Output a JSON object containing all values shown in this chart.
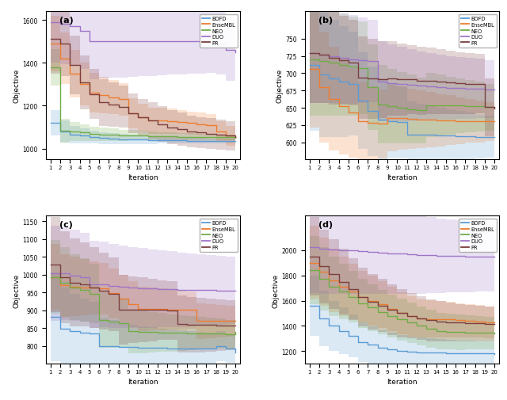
{
  "legend_labels": [
    "BOFD",
    "EnseMBL",
    "NEO",
    "DUO",
    "PR"
  ],
  "colors": {
    "BOFD": "#5b9bd5",
    "EnseMBL": "#ed7d31",
    "NEO": "#70ad47",
    "DUO": "#9e75c7",
    "PR": "#7b3f3f"
  },
  "subplot_labels": [
    "(a)",
    "(b)",
    "(c)",
    "(d)"
  ],
  "subplot_a": {
    "ylim": [
      950,
      1640
    ],
    "yticks": [
      1000,
      1200,
      1400,
      1600
    ],
    "ylabel": "Objective",
    "xlabel": "Iteration",
    "BOFD": {
      "mean": [
        1120,
        1080,
        1065,
        1060,
        1055,
        1050,
        1048,
        1045,
        1043,
        1042,
        1040,
        1040,
        1040,
        1038,
        1037,
        1037,
        1036,
        1036,
        1035,
        1035
      ],
      "std": [
        60,
        50,
        40,
        35,
        30,
        28,
        26,
        24,
        22,
        20,
        18,
        17,
        16,
        15,
        14,
        13,
        12,
        12,
        11,
        10
      ]
    },
    "EnseMBL": {
      "mean": [
        1490,
        1420,
        1350,
        1300,
        1260,
        1250,
        1240,
        1230,
        1165,
        1145,
        1130,
        1130,
        1128,
        1125,
        1120,
        1115,
        1110,
        1080,
        1060,
        1055
      ],
      "std": [
        130,
        120,
        110,
        100,
        92,
        85,
        80,
        75,
        70,
        65,
        62,
        60,
        58,
        56,
        54,
        52,
        50,
        48,
        46,
        44
      ]
    },
    "NEO": {
      "mean": [
        1380,
        1085,
        1080,
        1075,
        1070,
        1067,
        1065,
        1063,
        1062,
        1060,
        1059,
        1058,
        1057,
        1056,
        1055,
        1054,
        1054,
        1053,
        1053,
        1052
      ],
      "std": [
        85,
        55,
        45,
        38,
        33,
        30,
        28,
        26,
        24,
        22,
        20,
        19,
        18,
        17,
        16,
        15,
        14,
        13,
        12,
        11
      ]
    },
    "DUO": {
      "mean": [
        1590,
        1580,
        1570,
        1550,
        1500,
        1500,
        1500,
        1500,
        1500,
        1500,
        1500,
        1500,
        1500,
        1500,
        1500,
        1500,
        1500,
        1490,
        1460,
        1450
      ],
      "std": [
        190,
        188,
        185,
        180,
        175,
        172,
        170,
        168,
        165,
        162,
        160,
        158,
        156,
        154,
        152,
        150,
        148,
        146,
        144,
        142
      ]
    },
    "PR": {
      "mean": [
        1510,
        1490,
        1390,
        1310,
        1255,
        1215,
        1205,
        1195,
        1165,
        1145,
        1130,
        1115,
        1100,
        1090,
        1080,
        1075,
        1070,
        1065,
        1060,
        1055
      ],
      "std": [
        160,
        150,
        135,
        125,
        115,
        108,
        103,
        98,
        93,
        88,
        85,
        82,
        80,
        78,
        75,
        73,
        71,
        69,
        67,
        65
      ]
    }
  },
  "subplot_b": {
    "ylim": [
      575,
      790
    ],
    "yticks": [
      600,
      625,
      650,
      675,
      700,
      725,
      750
    ],
    "ylabel": "Objective",
    "xlabel": "Iteration",
    "BOFD": {
      "mean": [
        712,
        698,
        693,
        688,
        685,
        660,
        645,
        633,
        631,
        629,
        611,
        611,
        611,
        610,
        610,
        609,
        609,
        608,
        608,
        607
      ],
      "std": [
        95,
        90,
        85,
        80,
        75,
        70,
        65,
        60,
        55,
        52,
        48,
        45,
        42,
        40,
        38,
        36,
        34,
        32,
        30,
        28
      ]
    },
    "EnseMBL": {
      "mean": [
        706,
        680,
        663,
        652,
        643,
        630,
        628,
        627,
        635,
        635,
        634,
        633,
        633,
        632,
        632,
        631,
        631,
        630,
        630,
        630
      ],
      "std": [
        85,
        80,
        75,
        70,
        65,
        58,
        53,
        50,
        48,
        46,
        44,
        42,
        40,
        38,
        36,
        34,
        32,
        30,
        28,
        27
      ]
    },
    "NEO": {
      "mean": [
        720,
        718,
        715,
        712,
        710,
        708,
        680,
        655,
        652,
        650,
        648,
        646,
        654,
        654,
        653,
        653,
        652,
        652,
        651,
        651
      ],
      "std": [
        82,
        80,
        77,
        74,
        72,
        67,
        62,
        57,
        54,
        52,
        50,
        48,
        46,
        44,
        42,
        40,
        38,
        36,
        34,
        32
      ]
    },
    "DUO": {
      "mean": [
        729,
        727,
        725,
        722,
        720,
        719,
        718,
        688,
        686,
        684,
        683,
        682,
        681,
        680,
        679,
        679,
        678,
        678,
        677,
        677
      ],
      "std": [
        72,
        70,
        68,
        66,
        64,
        62,
        60,
        58,
        56,
        54,
        52,
        50,
        48,
        47,
        46,
        45,
        44,
        43,
        42,
        42
      ]
    },
    "PR": {
      "mean": [
        729,
        727,
        722,
        719,
        716,
        694,
        692,
        691,
        692,
        691,
        691,
        689,
        689,
        688,
        687,
        686,
        685,
        685,
        651,
        649
      ],
      "std": [
        72,
        70,
        67,
        64,
        62,
        60,
        58,
        56,
        54,
        52,
        50,
        49,
        48,
        47,
        46,
        45,
        44,
        43,
        42,
        41
      ]
    }
  },
  "subplot_c": {
    "ylim": [
      750,
      1165
    ],
    "yticks": [
      800,
      850,
      900,
      950,
      1000,
      1050,
      1100,
      1150
    ],
    "ylabel": "Objective",
    "xlabel": "Iteration",
    "BOFD": {
      "mean": [
        882,
        848,
        842,
        838,
        835,
        800,
        799,
        798,
        797,
        796,
        795,
        795,
        794,
        794,
        794,
        793,
        793,
        800,
        793,
        782
      ],
      "std": [
        125,
        115,
        105,
        95,
        88,
        78,
        73,
        68,
        63,
        60,
        57,
        54,
        52,
        50,
        48,
        46,
        44,
        42,
        40,
        38
      ]
    },
    "EnseMBL": {
      "mean": [
        993,
        970,
        967,
        965,
        963,
        961,
        948,
        933,
        918,
        904,
        904,
        903,
        902,
        901,
        901,
        870,
        870,
        870,
        870,
        870
      ],
      "std": [
        92,
        88,
        83,
        78,
        74,
        72,
        70,
        67,
        64,
        62,
        60,
        58,
        56,
        54,
        52,
        50,
        48,
        46,
        44,
        42
      ]
    },
    "NEO": {
      "mean": [
        993,
        978,
        965,
        957,
        947,
        874,
        869,
        865,
        842,
        840,
        839,
        838,
        837,
        837,
        836,
        836,
        835,
        835,
        834,
        840
      ],
      "std": [
        103,
        98,
        93,
        88,
        83,
        78,
        73,
        68,
        63,
        60,
        57,
        54,
        52,
        50,
        48,
        46,
        44,
        42,
        40,
        38
      ]
    },
    "DUO": {
      "mean": [
        1003,
        1003,
        998,
        993,
        973,
        973,
        968,
        966,
        964,
        962,
        961,
        960,
        959,
        958,
        958,
        957,
        957,
        956,
        956,
        955
      ],
      "std": [
        133,
        130,
        127,
        124,
        122,
        120,
        118,
        116,
        114,
        112,
        110,
        108,
        106,
        104,
        102,
        100,
        98,
        96,
        94,
        92
      ]
    },
    "PR": {
      "mean": [
        1028,
        993,
        978,
        973,
        963,
        954,
        946,
        902,
        902,
        902,
        901,
        901,
        900,
        862,
        860,
        859,
        859,
        858,
        858,
        857
      ],
      "std": [
        133,
        128,
        123,
        118,
        113,
        108,
        103,
        98,
        93,
        90,
        87,
        84,
        82,
        80,
        78,
        76,
        74,
        72,
        70,
        68
      ]
    }
  },
  "subplot_d": {
    "ylim": [
      1100,
      2270
    ],
    "yticks": [
      1200,
      1400,
      1600,
      1800,
      2000
    ],
    "ylabel": "Objective",
    "xlabel": "Iteration",
    "BOFD": {
      "mean": [
        1560,
        1460,
        1400,
        1360,
        1320,
        1270,
        1250,
        1230,
        1215,
        1200,
        1195,
        1192,
        1190,
        1188,
        1186,
        1185,
        1184,
        1183,
        1182,
        1180
      ],
      "std": [
        240,
        220,
        200,
        185,
        170,
        155,
        145,
        138,
        130,
        125,
        120,
        115,
        112,
        108,
        105,
        102,
        100,
        98,
        96,
        94
      ]
    },
    "EnseMBL": {
      "mean": [
        1900,
        1830,
        1760,
        1710,
        1670,
        1630,
        1600,
        1570,
        1535,
        1500,
        1475,
        1460,
        1455,
        1452,
        1450,
        1445,
        1440,
        1435,
        1430,
        1428
      ],
      "std": [
        290,
        270,
        250,
        235,
        220,
        205,
        195,
        185,
        175,
        165,
        158,
        152,
        148,
        144,
        140,
        136,
        132,
        128,
        125,
        122
      ]
    },
    "NEO": {
      "mean": [
        1840,
        1770,
        1710,
        1670,
        1630,
        1580,
        1545,
        1510,
        1480,
        1450,
        1425,
        1400,
        1375,
        1360,
        1355,
        1350,
        1348,
        1346,
        1344,
        1342
      ],
      "std": [
        270,
        250,
        235,
        220,
        205,
        195,
        185,
        175,
        170,
        165,
        160,
        155,
        150,
        146,
        142,
        138,
        134,
        130,
        126,
        122
      ]
    },
    "DUO": {
      "mean": [
        2020,
        2010,
        2005,
        2000,
        1995,
        1990,
        1985,
        1980,
        1975,
        1970,
        1965,
        1960,
        1957,
        1955,
        1953,
        1951,
        1950,
        1949,
        1948,
        1947
      ],
      "std": [
        360,
        355,
        350,
        345,
        340,
        335,
        330,
        325,
        320,
        315,
        310,
        305,
        300,
        295,
        290,
        285,
        282,
        280,
        278,
        276
      ]
    },
    "PR": {
      "mean": [
        1950,
        1870,
        1810,
        1750,
        1690,
        1630,
        1590,
        1560,
        1530,
        1500,
        1480,
        1460,
        1445,
        1435,
        1430,
        1425,
        1422,
        1420,
        1418,
        1416
      ],
      "std": [
        310,
        290,
        275,
        260,
        245,
        232,
        220,
        210,
        200,
        190,
        180,
        172,
        165,
        160,
        155,
        150,
        146,
        142,
        138,
        135
      ]
    }
  }
}
